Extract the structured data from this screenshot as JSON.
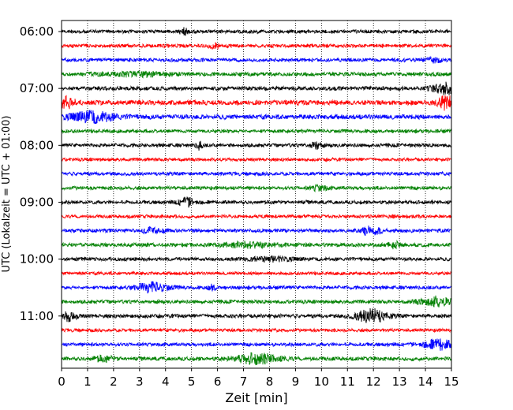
{
  "chart_data": {
    "type": "line",
    "xlabel": "Zeit  [min]",
    "ylabel": "UTC (Lokalzeit = UTC + 01:00)",
    "xlim": [
      0,
      15
    ],
    "x_ticks": [
      "0",
      "1",
      "2",
      "3",
      "4",
      "5",
      "6",
      "7",
      "8",
      "9",
      "10",
      "11",
      "12",
      "13",
      "14",
      "15"
    ],
    "y_ticks": [
      "06:00",
      "07:00",
      "08:00",
      "09:00",
      "10:00",
      "11:00"
    ],
    "grid": "vertical-dotted",
    "trace_colors": [
      "#000000",
      "#ff0000",
      "#0000ff",
      "#008000"
    ],
    "traces": [
      {
        "start": "06:00",
        "color": "#000000",
        "amp": 2.2,
        "events": [
          {
            "t": 4.7,
            "a": 4,
            "w": 0.15
          }
        ]
      },
      {
        "start": "06:15",
        "color": "#ff0000",
        "amp": 2.2,
        "events": [
          {
            "t": 5.9,
            "a": 3.5,
            "w": 0.2
          }
        ]
      },
      {
        "start": "06:30",
        "color": "#0000ff",
        "amp": 2.2,
        "events": [
          {
            "t": 14.3,
            "a": 3,
            "w": 0.3
          }
        ]
      },
      {
        "start": "06:45",
        "color": "#008000",
        "amp": 2.4,
        "events": [
          {
            "t": 3.0,
            "a": 2.5,
            "w": 1.2
          }
        ]
      },
      {
        "start": "07:00",
        "color": "#000000",
        "amp": 2.4,
        "events": [
          {
            "t": 14.8,
            "a": 7,
            "w": 0.5
          }
        ]
      },
      {
        "start": "07:15",
        "color": "#ff0000",
        "amp": 3.0,
        "events": [
          {
            "t": 0.2,
            "a": 6,
            "w": 0.3
          },
          {
            "t": 14.8,
            "a": 8,
            "w": 0.3
          }
        ]
      },
      {
        "start": "07:30",
        "color": "#0000ff",
        "amp": 3.0,
        "events": [
          {
            "t": 1.2,
            "a": 6,
            "w": 0.8
          }
        ]
      },
      {
        "start": "07:45",
        "color": "#008000",
        "amp": 2.2,
        "events": []
      },
      {
        "start": "08:00",
        "color": "#000000",
        "amp": 2.2,
        "events": [
          {
            "t": 5.3,
            "a": 5,
            "w": 0.1
          },
          {
            "t": 9.8,
            "a": 4,
            "w": 0.2
          }
        ]
      },
      {
        "start": "08:15",
        "color": "#ff0000",
        "amp": 2.0,
        "events": []
      },
      {
        "start": "08:30",
        "color": "#0000ff",
        "amp": 2.2,
        "events": []
      },
      {
        "start": "08:45",
        "color": "#008000",
        "amp": 2.2,
        "events": [
          {
            "t": 9.9,
            "a": 3,
            "w": 0.3
          }
        ]
      },
      {
        "start": "09:00",
        "color": "#000000",
        "amp": 2.2,
        "events": [
          {
            "t": 4.8,
            "a": 5,
            "w": 0.3
          }
        ]
      },
      {
        "start": "09:15",
        "color": "#ff0000",
        "amp": 2.0,
        "events": []
      },
      {
        "start": "09:30",
        "color": "#0000ff",
        "amp": 2.2,
        "events": [
          {
            "t": 3.5,
            "a": 3,
            "w": 0.4
          },
          {
            "t": 11.9,
            "a": 5,
            "w": 0.4
          }
        ]
      },
      {
        "start": "09:45",
        "color": "#008000",
        "amp": 2.4,
        "events": [
          {
            "t": 7.2,
            "a": 3,
            "w": 1.0
          },
          {
            "t": 12.8,
            "a": 3.5,
            "w": 0.2
          }
        ]
      },
      {
        "start": "10:00",
        "color": "#000000",
        "amp": 2.2,
        "events": [
          {
            "t": 8.0,
            "a": 2.5,
            "w": 0.8
          }
        ]
      },
      {
        "start": "10:15",
        "color": "#ff0000",
        "amp": 2.0,
        "events": []
      },
      {
        "start": "10:30",
        "color": "#0000ff",
        "amp": 2.2,
        "events": [
          {
            "t": 3.5,
            "a": 6,
            "w": 0.6
          },
          {
            "t": 5.8,
            "a": 3.5,
            "w": 0.15
          }
        ]
      },
      {
        "start": "10:45",
        "color": "#008000",
        "amp": 2.2,
        "events": [
          {
            "t": 14.4,
            "a": 6,
            "w": 0.6
          }
        ]
      },
      {
        "start": "11:00",
        "color": "#000000",
        "amp": 2.4,
        "events": [
          {
            "t": 0.3,
            "a": 6,
            "w": 0.3
          },
          {
            "t": 11.9,
            "a": 8,
            "w": 0.6
          }
        ]
      },
      {
        "start": "11:15",
        "color": "#ff0000",
        "amp": 2.0,
        "events": []
      },
      {
        "start": "11:30",
        "color": "#0000ff",
        "amp": 2.2,
        "events": [
          {
            "t": 14.5,
            "a": 6,
            "w": 0.5
          }
        ]
      },
      {
        "start": "11:45",
        "color": "#008000",
        "amp": 2.4,
        "events": [
          {
            "t": 7.5,
            "a": 6,
            "w": 0.8
          },
          {
            "t": 1.6,
            "a": 2.5,
            "w": 0.5
          }
        ]
      }
    ]
  }
}
